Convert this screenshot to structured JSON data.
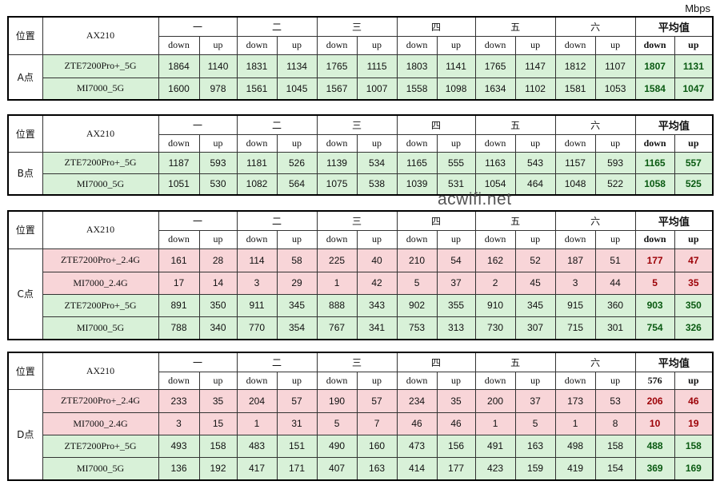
{
  "unit": "Mbps",
  "watermark": "acwifi.net",
  "tables": [
    {
      "corner": "位置",
      "adapter": "AX210",
      "location": "A点",
      "groups": [
        "一",
        "二",
        "三",
        "四",
        "五",
        "六",
        "平均值"
      ],
      "subheaders": [
        "down",
        "up",
        "down",
        "up",
        "down",
        "up",
        "down",
        "up",
        "down",
        "up",
        "down",
        "up",
        "down",
        "up"
      ],
      "rows": [
        {
          "device": "ZTE7200Pro+_5G",
          "color": "#d8f1d8",
          "values": [
            1864,
            1140,
            1831,
            1134,
            1765,
            1115,
            1803,
            1141,
            1765,
            1147,
            1812,
            1107,
            1807,
            1131
          ]
        },
        {
          "device": "MI7000_5G",
          "color": "#d8f1d8",
          "values": [
            1600,
            978,
            1561,
            1045,
            1567,
            1007,
            1558,
            1098,
            1634,
            1102,
            1581,
            1053,
            1584,
            1047
          ]
        }
      ]
    },
    {
      "corner": "位置",
      "adapter": "AX210",
      "location": "B点",
      "groups": [
        "一",
        "二",
        "三",
        "四",
        "五",
        "六",
        "平均值"
      ],
      "subheaders": [
        "down",
        "up",
        "down",
        "up",
        "down",
        "up",
        "down",
        "up",
        "down",
        "up",
        "down",
        "up",
        "down",
        "up"
      ],
      "rows": [
        {
          "device": "ZTE7200Pro+_5G",
          "color": "#d8f1d8",
          "values": [
            1187,
            593,
            1181,
            526,
            1139,
            534,
            1165,
            555,
            1163,
            543,
            1157,
            593,
            1165,
            557
          ]
        },
        {
          "device": "MI7000_5G",
          "color": "#d8f1d8",
          "values": [
            1051,
            530,
            1082,
            564,
            1075,
            538,
            1039,
            531,
            1054,
            464,
            1048,
            522,
            1058,
            525
          ]
        }
      ]
    },
    {
      "corner": "位置",
      "adapter": "AX210",
      "location": "C点",
      "groups": [
        "一",
        "二",
        "三",
        "四",
        "五",
        "六",
        "平均值"
      ],
      "subheaders": [
        "down",
        "up",
        "down",
        "up",
        "down",
        "up",
        "down",
        "up",
        "down",
        "up",
        "down",
        "up",
        "down",
        "up"
      ],
      "rows": [
        {
          "device": "ZTE7200Pro+_2.4G",
          "color": "#f8d5d8",
          "values": [
            161,
            28,
            114,
            58,
            225,
            40,
            210,
            54,
            162,
            52,
            187,
            51,
            177,
            47
          ]
        },
        {
          "device": "MI7000_2.4G",
          "color": "#f8d5d8",
          "values": [
            17,
            14,
            3,
            29,
            1,
            42,
            5,
            37,
            2,
            45,
            3,
            44,
            5,
            35
          ]
        },
        {
          "device": "ZTE7200Pro+_5G",
          "color": "#d8f1d8",
          "values": [
            891,
            350,
            911,
            345,
            888,
            343,
            902,
            355,
            910,
            345,
            915,
            360,
            903,
            350
          ]
        },
        {
          "device": "MI7000_5G",
          "color": "#d8f1d8",
          "values": [
            788,
            340,
            770,
            354,
            767,
            341,
            753,
            313,
            730,
            307,
            715,
            301,
            754,
            326
          ]
        }
      ]
    },
    {
      "corner": "位置",
      "adapter": "AX210",
      "location": "D点",
      "groups": [
        "一",
        "二",
        "三",
        "四",
        "五",
        "六",
        "平均值"
      ],
      "subheaders": [
        "down",
        "up",
        "down",
        "up",
        "down",
        "up",
        "down",
        "up",
        "down",
        "up",
        "down",
        "up",
        "576",
        "up"
      ],
      "rows": [
        {
          "device": "ZTE7200Pro+_2.4G",
          "color": "#f8d5d8",
          "values": [
            233,
            35,
            204,
            57,
            190,
            57,
            234,
            35,
            200,
            37,
            173,
            53,
            206,
            46
          ]
        },
        {
          "device": "MI7000_2.4G",
          "color": "#f8d5d8",
          "values": [
            3,
            15,
            1,
            31,
            5,
            7,
            46,
            46,
            1,
            5,
            1,
            8,
            10,
            19
          ]
        },
        {
          "device": "ZTE7200Pro+_5G",
          "color": "#d8f1d8",
          "values": [
            493,
            158,
            483,
            151,
            490,
            160,
            473,
            156,
            491,
            163,
            498,
            158,
            488,
            158
          ]
        },
        {
          "device": "MI7000_5G",
          "color": "#d8f1d8",
          "values": [
            136,
            192,
            417,
            171,
            407,
            163,
            414,
            177,
            423,
            159,
            419,
            154,
            369,
            169
          ]
        }
      ]
    }
  ]
}
